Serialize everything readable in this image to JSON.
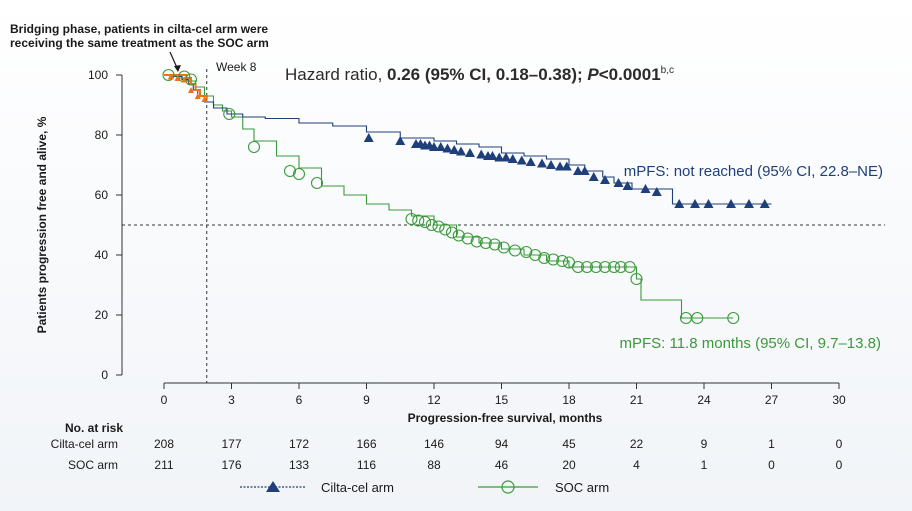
{
  "annotation": {
    "bridging_line1": "Bridging phase, patients in cilta-cel arm were",
    "bridging_line2": "receiving the same treatment as the SOC arm",
    "week8": "Week 8"
  },
  "hazard": {
    "prefix": "Hazard ratio, ",
    "bold": "0.26 (95% CI, 0.18–0.38); ",
    "p_italic": "P",
    "p_value": "<0.0001",
    "sup": "b,c"
  },
  "colors": {
    "cilta": "#1f3f7a",
    "soc": "#3a9a3a",
    "orange": "#e8751a",
    "grid": "#333333"
  },
  "risk_table": {
    "title": "No. at risk",
    "rows": [
      {
        "label": "Cilta-cel arm",
        "values": [
          "208",
          "177",
          "172",
          "166",
          "146",
          "94",
          "45",
          "22",
          "9",
          "1",
          "0"
        ]
      },
      {
        "label": "SOC arm",
        "values": [
          "211",
          "176",
          "133",
          "116",
          "88",
          "46",
          "20",
          "4",
          "1",
          "0",
          "0"
        ]
      }
    ]
  },
  "legend": {
    "cilta": "Cilta-cel arm",
    "soc": "SOC arm"
  },
  "chart_data": {
    "type": "line",
    "subtype": "kaplan-meier",
    "xlabel": "Progression-free survival, months",
    "ylabel": "Patients progression free and alive, %",
    "xlim": [
      0,
      30
    ],
    "ylim": [
      0,
      100
    ],
    "xticks": [
      0,
      3,
      6,
      9,
      12,
      15,
      18,
      21,
      24,
      27,
      30
    ],
    "yticks": [
      0,
      20,
      40,
      60,
      80,
      100
    ],
    "reference_lines": {
      "x": 1.9,
      "y": 50
    },
    "series": [
      {
        "name": "Cilta-cel arm",
        "median_label": "mPFS: not reached (95% CI, 22.8–NE)",
        "steps": [
          [
            0,
            100
          ],
          [
            0.4,
            99.5
          ],
          [
            0.8,
            98.5
          ],
          [
            1.1,
            97
          ],
          [
            1.3,
            95
          ],
          [
            1.5,
            93
          ],
          [
            1.8,
            91
          ],
          [
            2.2,
            89
          ],
          [
            2.8,
            87
          ],
          [
            3.5,
            86
          ],
          [
            4.5,
            85.5
          ],
          [
            6,
            84
          ],
          [
            7.5,
            83
          ],
          [
            9,
            81
          ],
          [
            10.5,
            79
          ],
          [
            12,
            78
          ],
          [
            13,
            77
          ],
          [
            14,
            76
          ],
          [
            15,
            74
          ],
          [
            16,
            73
          ],
          [
            17,
            72
          ],
          [
            18,
            70
          ],
          [
            18.7,
            68
          ],
          [
            19.5,
            66
          ],
          [
            20,
            64
          ],
          [
            20.8,
            62
          ],
          [
            22.6,
            57
          ],
          [
            27,
            57
          ]
        ],
        "censor_x": [
          9.1,
          10.5,
          11.2,
          11.4,
          11.6,
          11.8,
          12.0,
          12.3,
          12.6,
          12.9,
          13.2,
          13.6,
          14.1,
          14.4,
          14.6,
          14.9,
          15.2,
          15.5,
          15.9,
          16.3,
          16.8,
          17.2,
          17.6,
          17.9,
          18.4,
          18.7,
          19.1,
          19.6,
          20.2,
          20.6,
          21.4,
          21.9,
          22.9,
          23.6,
          24.2,
          25.2,
          26.0,
          26.7
        ],
        "censor_y": [
          79,
          78,
          77,
          77,
          76.5,
          76.5,
          76,
          76,
          75.5,
          75,
          74.5,
          74,
          73.5,
          73,
          73,
          72.5,
          72.5,
          72,
          71.5,
          71,
          70.5,
          70,
          69.5,
          69.5,
          68,
          68,
          66,
          65,
          64,
          63,
          62,
          61,
          57,
          57,
          57,
          57,
          57,
          57
        ]
      },
      {
        "name": "SOC arm",
        "median_label": "mPFS: 11.8 months (95% CI, 9.7–13.8)",
        "steps": [
          [
            0,
            100
          ],
          [
            0.6,
            99
          ],
          [
            1.0,
            98
          ],
          [
            1.4,
            96
          ],
          [
            1.8,
            93
          ],
          [
            2.2,
            90
          ],
          [
            2.6,
            88
          ],
          [
            3.0,
            86
          ],
          [
            3.5,
            82
          ],
          [
            4.0,
            78
          ],
          [
            5.0,
            73
          ],
          [
            6.0,
            69
          ],
          [
            7.0,
            63
          ],
          [
            8.0,
            60
          ],
          [
            9.0,
            57
          ],
          [
            10.0,
            55
          ],
          [
            11.0,
            53
          ],
          [
            12.0,
            50
          ],
          [
            13.0,
            46
          ],
          [
            14.0,
            44
          ],
          [
            15.0,
            42
          ],
          [
            16.0,
            40
          ],
          [
            17.0,
            38
          ],
          [
            18.0,
            36
          ],
          [
            19.0,
            36
          ],
          [
            20.5,
            36
          ],
          [
            21.0,
            32
          ],
          [
            21.2,
            25
          ],
          [
            22.8,
            25
          ],
          [
            23.0,
            19
          ],
          [
            25.3,
            19
          ]
        ],
        "censor_x": [
          0.2,
          0.9,
          1.2,
          2.9,
          4.0,
          5.6,
          6.0,
          6.8,
          11.0,
          11.3,
          11.6,
          11.9,
          12.2,
          12.5,
          12.8,
          13.1,
          13.5,
          13.9,
          14.3,
          14.7,
          15.1,
          15.6,
          16.1,
          16.5,
          16.9,
          17.3,
          17.7,
          18.0,
          18.4,
          18.8,
          19.2,
          19.6,
          20.0,
          20.3,
          20.7,
          21.0,
          23.2,
          23.7,
          25.3
        ],
        "censor_y": [
          100,
          99.5,
          98.5,
          87,
          76,
          68,
          67,
          64,
          52,
          51.5,
          51,
          50,
          49.5,
          48.5,
          47.5,
          46.5,
          45.5,
          44.5,
          44,
          43.5,
          42.5,
          41.5,
          41,
          40,
          39,
          38.5,
          38,
          37.5,
          36,
          36,
          36,
          36,
          36,
          36,
          36,
          32,
          19,
          19,
          19
        ]
      }
    ],
    "orange_segment": {
      "steps": [
        [
          0,
          100
        ],
        [
          1.0,
          99
        ],
        [
          1.2,
          97
        ],
        [
          1.4,
          95
        ],
        [
          1.6,
          93
        ],
        [
          1.9,
          92
        ]
      ],
      "markers_x": [
        0.3,
        0.6,
        0.9,
        1.2,
        1.5,
        1.8
      ],
      "markers_y": [
        99.5,
        99,
        98.5,
        95,
        93,
        92
      ]
    }
  }
}
